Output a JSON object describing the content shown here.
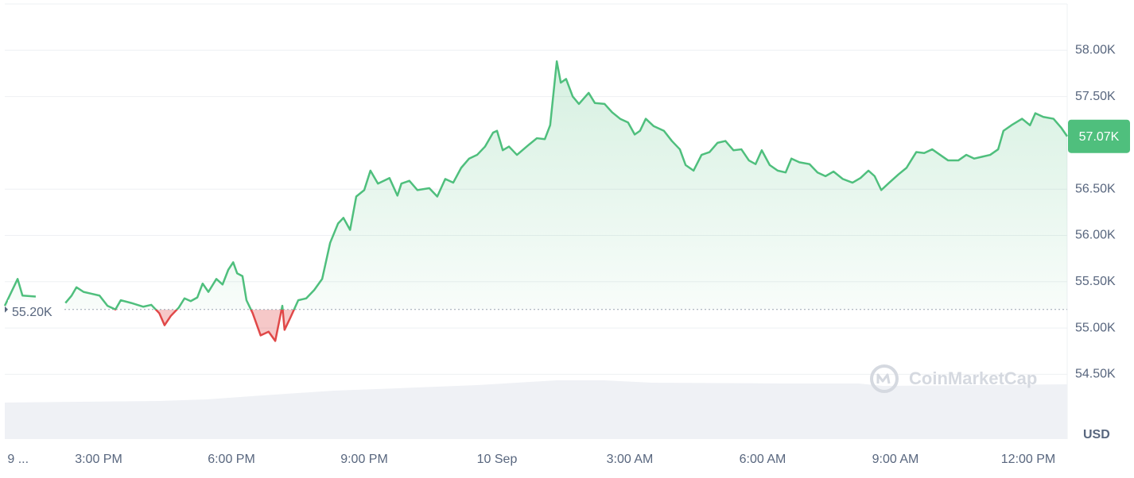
{
  "chart_data": {
    "type": "line",
    "currency": "USD",
    "watermark": "CoinMarketCap",
    "baseline": {
      "value": 55200,
      "label": "55.20K"
    },
    "current": {
      "value": 57070,
      "label": "57.07K"
    },
    "up_color": "#4fbf7d",
    "down_color": "#e04848",
    "grid": true,
    "ylim": [
      53800,
      58500
    ],
    "yticks": [
      {
        "value": 58000,
        "label": "58.00K"
      },
      {
        "value": 57500,
        "label": "57.50K"
      },
      {
        "value": 56500,
        "label": "56.50K"
      },
      {
        "value": 56000,
        "label": "56.00K"
      },
      {
        "value": 55500,
        "label": "55.50K"
      },
      {
        "value": 55000,
        "label": "55.00K"
      },
      {
        "value": 54500,
        "label": "54.50K"
      }
    ],
    "xlim": [
      12.88,
      36.88
    ],
    "xticks": [
      {
        "value": 13.18,
        "label": "9 ..."
      },
      {
        "value": 15,
        "label": "3:00 PM"
      },
      {
        "value": 18,
        "label": "6:00 PM"
      },
      {
        "value": 21,
        "label": "9:00 PM"
      },
      {
        "value": 24,
        "label": "10 Sep"
      },
      {
        "value": 27,
        "label": "3:00 AM"
      },
      {
        "value": 30,
        "label": "6:00 AM"
      },
      {
        "value": 33,
        "label": "9:00 AM"
      },
      {
        "value": 36,
        "label": "12:00 PM"
      }
    ],
    "x": [
      12.88,
      13.17,
      13.28,
      13.58,
      13.9,
      14.25,
      14.39,
      14.5,
      14.66,
      14.84,
      15.02,
      15.2,
      15.38,
      15.5,
      15.74,
      16.01,
      16.19,
      16.37,
      16.49,
      16.63,
      16.81,
      16.94,
      17.08,
      17.23,
      17.35,
      17.48,
      17.66,
      17.8,
      17.93,
      18.04,
      18.13,
      18.25,
      18.34,
      18.48,
      18.66,
      18.84,
      18.99,
      19.15,
      19.2,
      19.33,
      19.51,
      19.69,
      19.87,
      20.05,
      20.23,
      20.41,
      20.53,
      20.68,
      20.82,
      21.0,
      21.14,
      21.31,
      21.57,
      21.75,
      21.84,
      22.02,
      22.2,
      22.47,
      22.65,
      22.83,
      23.01,
      23.19,
      23.37,
      23.55,
      23.73,
      23.91,
      24.0,
      24.13,
      24.27,
      24.45,
      24.72,
      24.9,
      25.08,
      25.2,
      25.35,
      25.44,
      25.56,
      25.71,
      25.85,
      26.07,
      26.21,
      26.43,
      26.6,
      26.78,
      26.96,
      27.11,
      27.23,
      27.36,
      27.54,
      27.77,
      27.95,
      28.13,
      28.26,
      28.44,
      28.62,
      28.8,
      28.98,
      29.16,
      29.34,
      29.52,
      29.69,
      29.84,
      29.98,
      30.16,
      30.34,
      30.52,
      30.65,
      30.83,
      31.06,
      31.24,
      31.42,
      31.6,
      31.81,
      32.03,
      32.21,
      32.39,
      32.53,
      32.68,
      32.86,
      33.07,
      33.25,
      33.47,
      33.65,
      33.83,
      34.01,
      34.19,
      34.42,
      34.6,
      34.78,
      34.96,
      35.14,
      35.32,
      35.44,
      35.62,
      35.86,
      36.04,
      36.16,
      36.34,
      36.57,
      36.75,
      36.88
    ],
    "values": [
      55240,
      55530,
      55350,
      55340,
      null,
      55270,
      55350,
      55440,
      55390,
      55370,
      55350,
      55240,
      55200,
      55300,
      55270,
      55230,
      55250,
      55160,
      55030,
      55130,
      55220,
      55320,
      55290,
      55330,
      55480,
      55390,
      55530,
      55470,
      55630,
      55710,
      55590,
      55560,
      55300,
      55160,
      54920,
      54960,
      54860,
      55240,
      54980,
      55110,
      55300,
      55320,
      55410,
      55530,
      55920,
      56130,
      56190,
      56060,
      56420,
      56490,
      56700,
      56560,
      56620,
      56430,
      56560,
      56590,
      56490,
      56510,
      56420,
      56610,
      56570,
      56730,
      56830,
      56870,
      56960,
      57110,
      57130,
      56920,
      56960,
      56870,
      56980,
      57050,
      57040,
      57190,
      57880,
      57650,
      57690,
      57500,
      57420,
      57540,
      57430,
      57420,
      57330,
      57260,
      57220,
      57090,
      57130,
      57260,
      57180,
      57130,
      57020,
      56930,
      56760,
      56700,
      56870,
      56900,
      57000,
      57020,
      56920,
      56930,
      56810,
      56770,
      56920,
      56760,
      56700,
      56680,
      56830,
      56790,
      56770,
      56680,
      56640,
      56690,
      56610,
      56570,
      56620,
      56700,
      56640,
      56490,
      56570,
      56660,
      56730,
      56900,
      56890,
      56930,
      56870,
      56810,
      56810,
      56870,
      56830,
      56850,
      56870,
      56930,
      57130,
      57190,
      57260,
      57190,
      57320,
      57280,
      57260,
      57160,
      57070
    ]
  }
}
